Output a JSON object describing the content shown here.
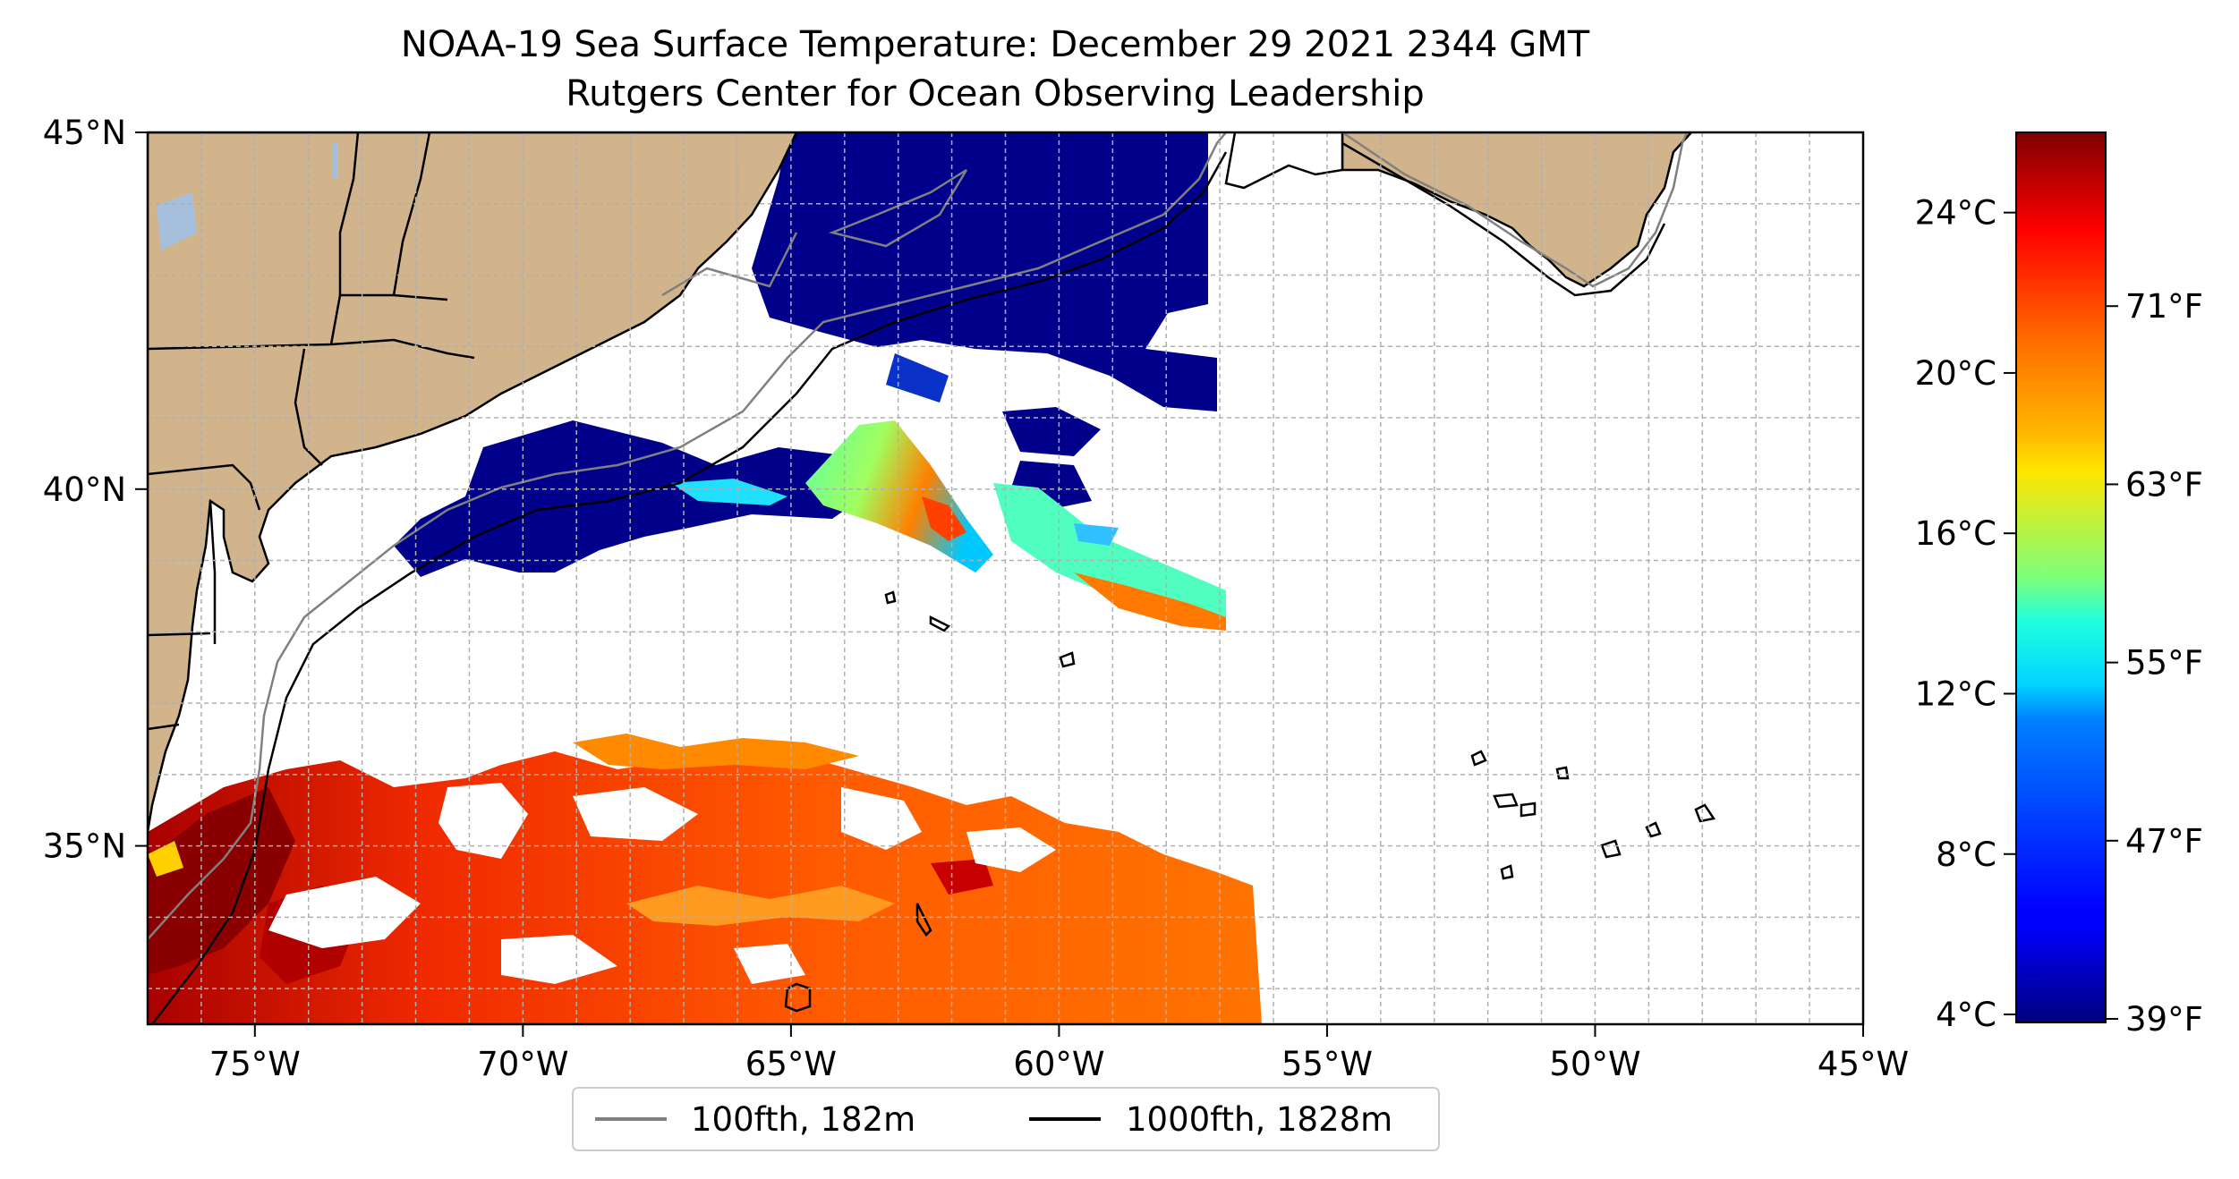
{
  "title": {
    "line1": "NOAA-19 Sea Surface Temperature: December 29 2021 2344 GMT",
    "line2": "Rutgers Center for Ocean Observing Leadership"
  },
  "map": {
    "lon_range": [
      -77,
      -45
    ],
    "lat_range": [
      32.5,
      45
    ],
    "lon_ticks": [
      {
        "value": -75,
        "label": "75°W"
      },
      {
        "value": -70,
        "label": "70°W"
      },
      {
        "value": -65,
        "label": "65°W"
      },
      {
        "value": -60,
        "label": "60°W"
      },
      {
        "value": -55,
        "label": "55°W"
      },
      {
        "value": -50,
        "label": "50°W"
      },
      {
        "value": -45,
        "label": "45°W"
      }
    ],
    "lat_ticks": [
      {
        "value": 45,
        "label": "45°N"
      },
      {
        "value": 40,
        "label": "40°N"
      },
      {
        "value": 35,
        "label": "35°N"
      }
    ],
    "grid": true,
    "land_color": "#d2b48c",
    "lake_color": "#a5bfdd"
  },
  "colorbar": {
    "celsius_range": [
      3.8,
      26
    ],
    "celsius_ticks": [
      {
        "value": 24,
        "label": "24°C"
      },
      {
        "value": 20,
        "label": "20°C"
      },
      {
        "value": 16,
        "label": "16°C"
      },
      {
        "value": 12,
        "label": "12°C"
      },
      {
        "value": 8,
        "label": "8°C"
      },
      {
        "value": 4,
        "label": "4°C"
      }
    ],
    "fahrenheit_ticks": [
      {
        "value": 71,
        "label": "71°F"
      },
      {
        "value": 63,
        "label": "63°F"
      },
      {
        "value": 55,
        "label": "55°F"
      },
      {
        "value": 47,
        "label": "47°F"
      },
      {
        "value": 39,
        "label": "39°F"
      }
    ],
    "colormap": "jet"
  },
  "legend": {
    "entries": [
      {
        "label": "100fth, 182m",
        "color": "#808080"
      },
      {
        "label": "1000fth, 1828m",
        "color": "#000000"
      }
    ],
    "placement": "bottom-center"
  }
}
